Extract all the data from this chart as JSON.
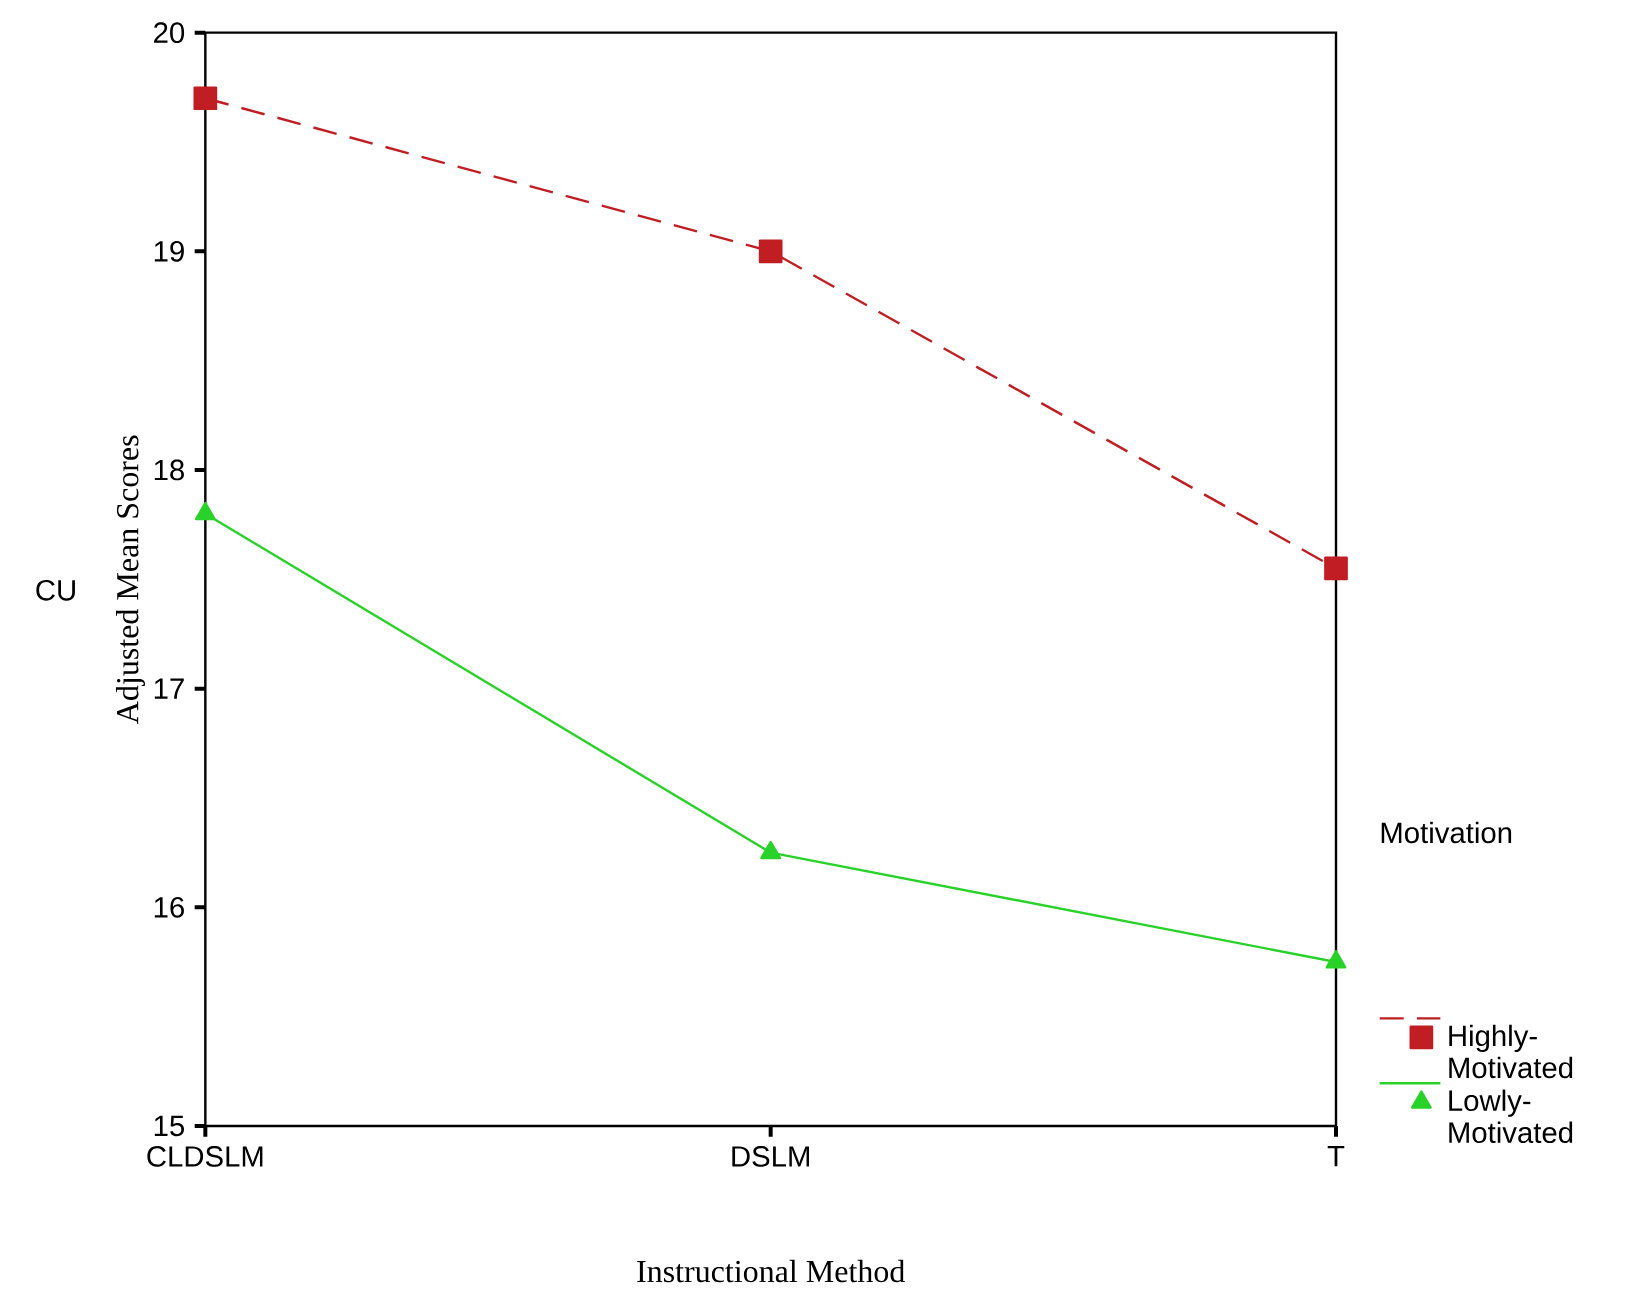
{
  "chart_data": {
    "type": "line",
    "xlabel": "Instructional Method",
    "ylabel": "Adjusted Mean Scores",
    "annotations": [
      "CU"
    ],
    "legend_title": "Motivation",
    "categories": [
      "CLDSLM",
      "DSLM",
      "T"
    ],
    "series": [
      {
        "name": "Highly-Motivated",
        "color": "#c01e23",
        "marker": "square",
        "line_style": "dashed",
        "values": [
          19.7,
          19.0,
          17.55
        ]
      },
      {
        "name": "Lowly-Motivated",
        "color": "#28d228",
        "marker": "triangle",
        "line_style": "solid",
        "values": [
          17.8,
          16.25,
          15.75
        ]
      }
    ],
    "ylim": [
      15,
      20
    ],
    "yticks": [
      15,
      16,
      17,
      18,
      19,
      20
    ],
    "grid": false,
    "legend": "right"
  }
}
